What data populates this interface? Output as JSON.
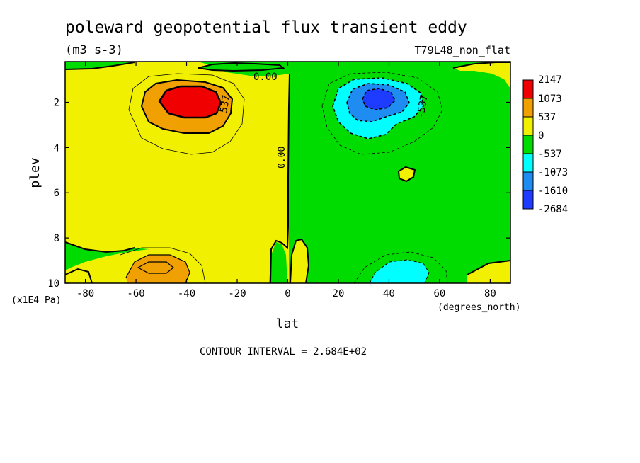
{
  "chart_data": {
    "type": "heatmap",
    "title": "poleward geopotential flux transient eddy",
    "units": "(m3 s-3)",
    "run_label": "T79L48_non_flat",
    "xlabel": "lat",
    "ylabel": "plev",
    "x_units_label": "(degrees_north)",
    "y_units_label": "(x1E4 Pa)",
    "xlim": [
      -88,
      88
    ],
    "ylim": [
      10,
      0.2
    ],
    "x_ticks": [
      -80,
      -60,
      -40,
      -20,
      0,
      20,
      40,
      60,
      80
    ],
    "y_ticks": [
      2,
      4,
      6,
      8,
      10
    ],
    "contour_interval_text": "CONTOUR INTERVAL = 2.684E+02",
    "contour_labels": [
      "0.00",
      "0.00",
      "537",
      "-537"
    ],
    "colorbar": {
      "labels": [
        "2147",
        "1073",
        "537",
        "0",
        "-537",
        "-1073",
        "-1610",
        "-2684"
      ],
      "colors": [
        "#f00000",
        "#f0a000",
        "#f0f000",
        "#00dc00",
        "#00ffff",
        "#1e8cf0",
        "#1e3cff"
      ]
    },
    "colors": {
      "yellow": "#f0f000",
      "green": "#00dc00",
      "orange": "#f0a000",
      "red": "#f00000",
      "cyan": "#00ffff",
      "midblue": "#1e8cf0",
      "blue": "#1e3cff"
    }
  }
}
